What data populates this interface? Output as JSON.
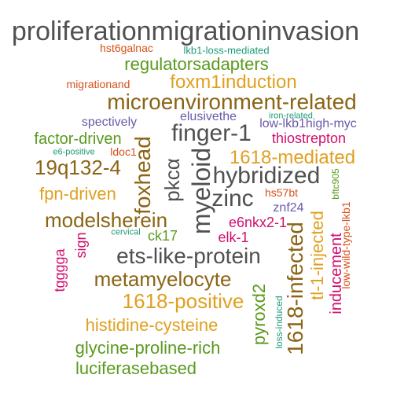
{
  "palette": {
    "gray": "#505050",
    "brown": "#8B6414",
    "gold": "#E0A020",
    "green": "#5A9A1E",
    "magenta": "#D0106E",
    "purple": "#6A5AAA",
    "orange": "#D8501A",
    "teal": "#1E9A78"
  },
  "words": [
    {
      "text": "proliferationmigrationinvasion",
      "color": "gray",
      "orientation": "horizontal"
    },
    {
      "text": "hst6galnac",
      "color": "orange",
      "orientation": "horizontal"
    },
    {
      "text": "lkb1-loss-mediated",
      "color": "teal",
      "orientation": "horizontal"
    },
    {
      "text": "regulatorsadapters",
      "color": "green",
      "orientation": "horizontal"
    },
    {
      "text": "migrationand",
      "color": "orange",
      "orientation": "horizontal"
    },
    {
      "text": "foxm1induction",
      "color": "gold",
      "orientation": "horizontal"
    },
    {
      "text": "microenvironment-related",
      "color": "brown",
      "orientation": "horizontal"
    },
    {
      "text": "elusivethe",
      "color": "purple",
      "orientation": "horizontal"
    },
    {
      "text": "iron-related",
      "color": "teal",
      "orientation": "horizontal"
    },
    {
      "text": "spectively",
      "color": "purple",
      "orientation": "horizontal"
    },
    {
      "text": "low-lkb1high-myc",
      "color": "purple",
      "orientation": "horizontal"
    },
    {
      "text": "factor-driven",
      "color": "green",
      "orientation": "horizontal"
    },
    {
      "text": "finger-1",
      "color": "gray",
      "orientation": "horizontal"
    },
    {
      "text": "thiostrepton",
      "color": "magenta",
      "orientation": "horizontal"
    },
    {
      "text": "e6-positive",
      "color": "teal",
      "orientation": "horizontal"
    },
    {
      "text": "ldoc1",
      "color": "orange",
      "orientation": "horizontal"
    },
    {
      "text": "1618-mediated",
      "color": "gold",
      "orientation": "horizontal"
    },
    {
      "text": "19q132-4",
      "color": "brown",
      "orientation": "horizontal"
    },
    {
      "text": "foxhead",
      "color": "brown",
      "orientation": "vertical"
    },
    {
      "text": "pkcα",
      "color": "gray",
      "orientation": "vertical"
    },
    {
      "text": "myeloid",
      "color": "gray",
      "orientation": "vertical"
    },
    {
      "text": "hybridized",
      "color": "gray",
      "orientation": "horizontal"
    },
    {
      "text": "bftc905",
      "color": "green",
      "orientation": "vertical"
    },
    {
      "text": "fpn-driven",
      "color": "gold",
      "orientation": "horizontal"
    },
    {
      "text": "zinc",
      "color": "gray",
      "orientation": "horizontal"
    },
    {
      "text": "hs57bt",
      "color": "orange",
      "orientation": "horizontal"
    },
    {
      "text": "modelsherein",
      "color": "brown",
      "orientation": "horizontal"
    },
    {
      "text": "e6nkx2-1",
      "color": "magenta",
      "orientation": "horizontal"
    },
    {
      "text": "znf24",
      "color": "purple",
      "orientation": "horizontal"
    },
    {
      "text": "low-wild-type-lkb1",
      "color": "orange",
      "orientation": "vertical"
    },
    {
      "text": "cervical",
      "color": "teal",
      "orientation": "horizontal"
    },
    {
      "text": "ck17",
      "color": "green",
      "orientation": "horizontal"
    },
    {
      "text": "elk-1",
      "color": "magenta",
      "orientation": "horizontal"
    },
    {
      "text": "sign",
      "color": "magenta",
      "orientation": "vertical"
    },
    {
      "text": "tggggа",
      "color": "magenta",
      "orientation": "vertical"
    },
    {
      "text": "ets-like-protein",
      "color": "gray",
      "orientation": "horizontal"
    },
    {
      "text": "1618-infected",
      "color": "brown",
      "orientation": "vertical"
    },
    {
      "text": "tl-1-injected",
      "color": "gold",
      "orientation": "vertical"
    },
    {
      "text": "inducement",
      "color": "magenta",
      "orientation": "vertical"
    },
    {
      "text": "metamyelocyte",
      "color": "brown",
      "orientation": "horizontal"
    },
    {
      "text": "pyroxd2",
      "color": "green",
      "orientation": "vertical"
    },
    {
      "text": "1618-positive",
      "color": "gold",
      "orientation": "horizontal"
    },
    {
      "text": "loss-induced",
      "color": "teal",
      "orientation": "vertical"
    },
    {
      "text": "histidine-cysteine",
      "color": "gold",
      "orientation": "horizontal"
    },
    {
      "text": "glycine-proline-rich",
      "color": "green",
      "orientation": "horizontal"
    },
    {
      "text": "luciferasebased",
      "color": "green",
      "orientation": "horizontal"
    }
  ]
}
